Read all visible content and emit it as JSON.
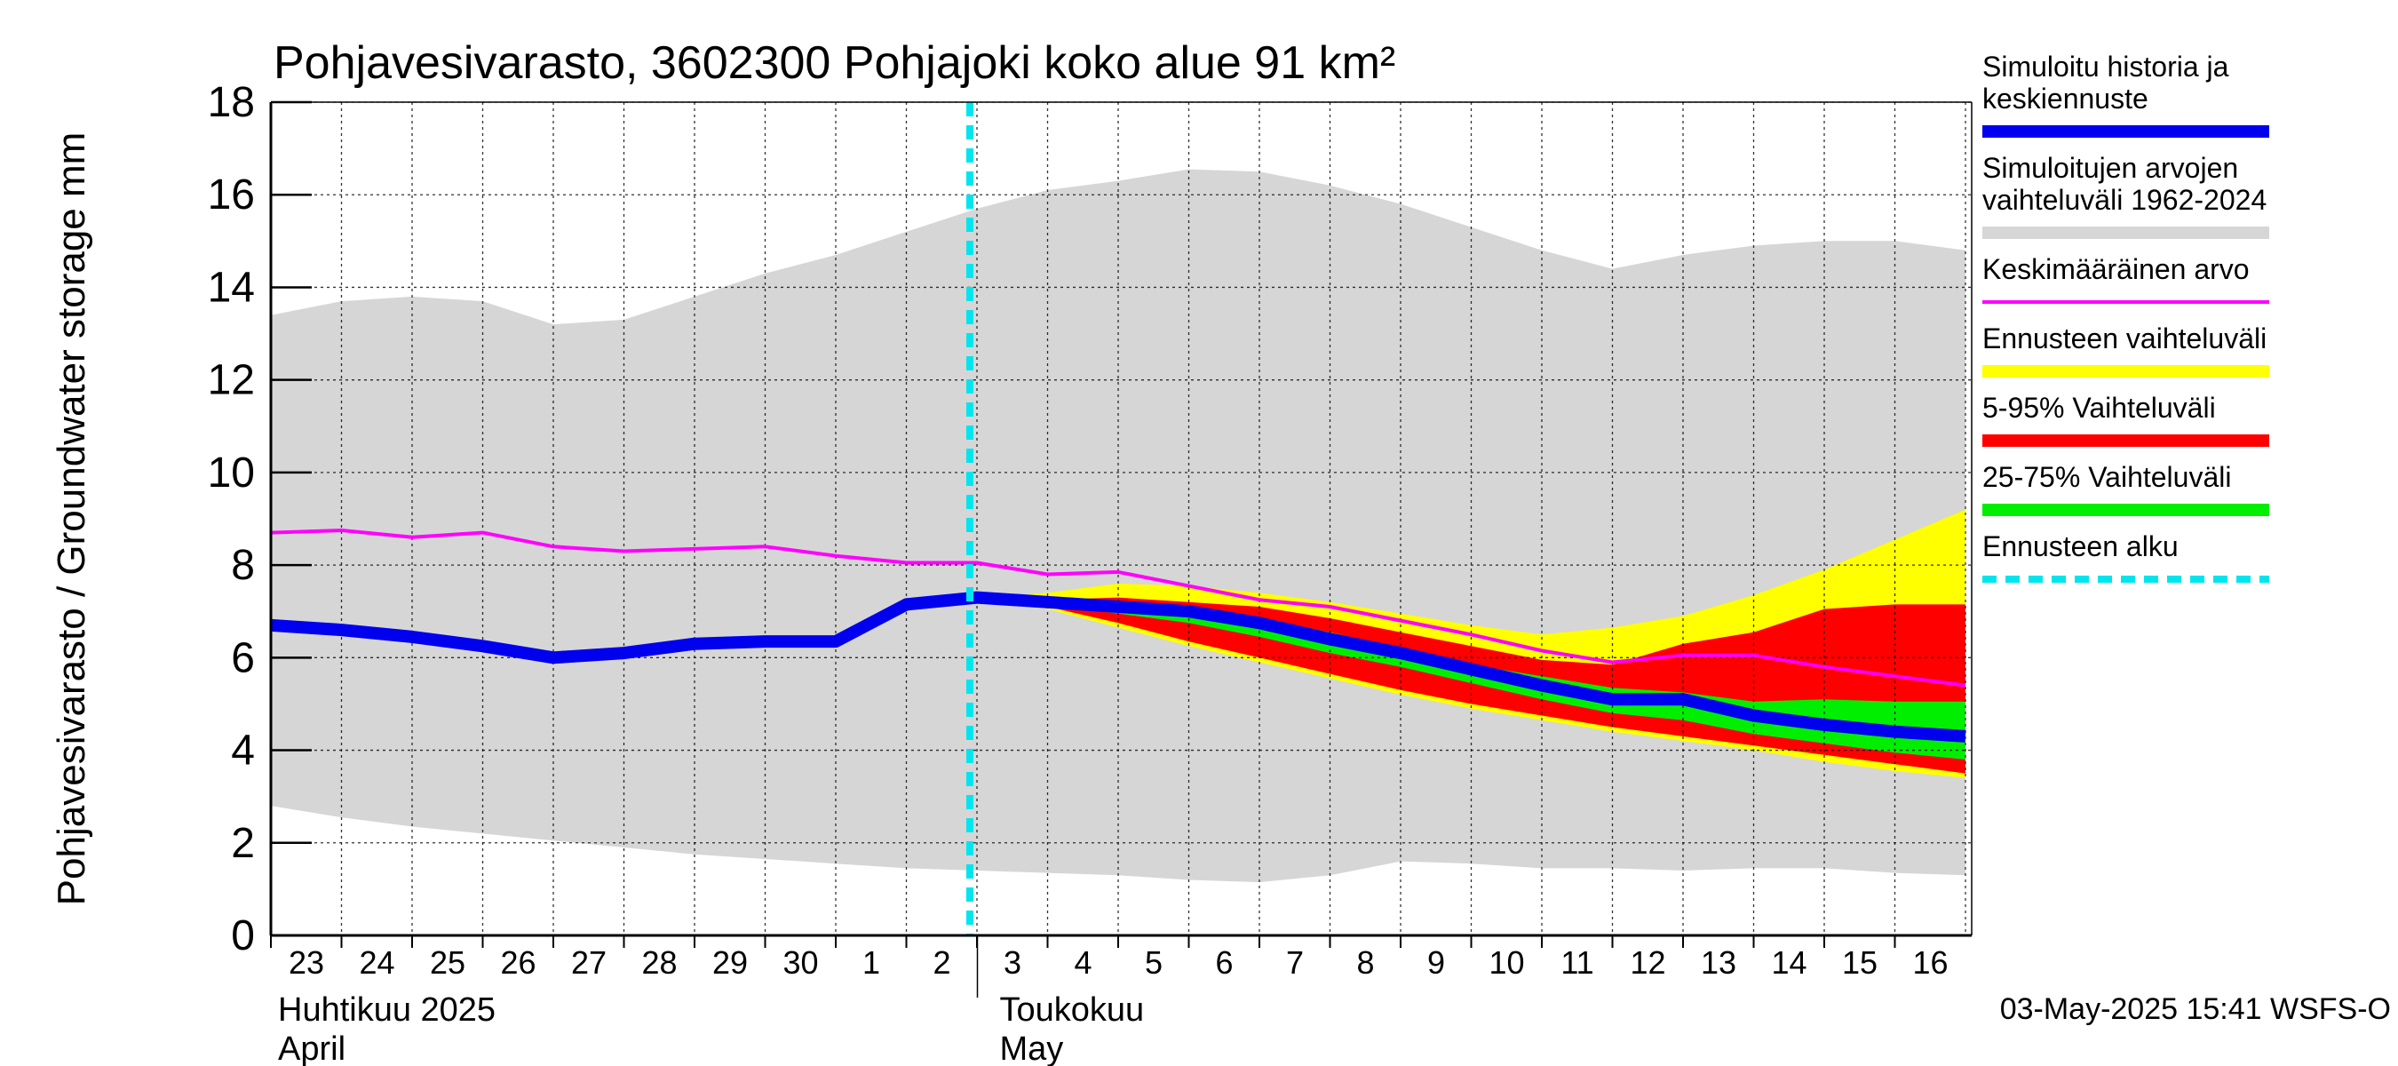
{
  "chart_data": {
    "type": "area",
    "title": "Pohjavesivarasto, 3602300 Pohjajoki koko alue 91 km²",
    "ylabel": "Pohjavesivarasto / Groundwater storage   mm",
    "ylim": [
      0,
      18
    ],
    "yticks": [
      0,
      2,
      4,
      6,
      8,
      10,
      12,
      14,
      16,
      18
    ],
    "x_day_labels": [
      "23",
      "24",
      "25",
      "26",
      "27",
      "28",
      "29",
      "30",
      "1",
      "2",
      "3",
      "4",
      "5",
      "6",
      "7",
      "8",
      "9",
      "10",
      "11",
      "12",
      "13",
      "14",
      "15",
      "16"
    ],
    "x_month_labels": [
      {
        "day_index": 0,
        "fi": "Huhtikuu  2025",
        "en": "April"
      },
      {
        "day_index": 9,
        "fi": "Toukokuu",
        "en": "May"
      }
    ],
    "forecast_start_day_index": 10,
    "footer": "03-May-2025 15:41 WSFS-O",
    "colors": {
      "hist_range": "#d6d6d6",
      "sim": "#0000ee",
      "mean": "#ff00ff",
      "fc_range": "#ffff00",
      "p5_95": "#ff0000",
      "p25_75": "#00ee00",
      "forecast_start": "#00e5ee",
      "grid": "#000000"
    },
    "legend": [
      {
        "key": "sim",
        "lines": [
          "Simuloitu historia ja",
          "keskiennuste"
        ],
        "style": "thick"
      },
      {
        "key": "hist_range",
        "lines": [
          "Simuloitujen arvojen",
          "vaihteluväli 1962-2024"
        ],
        "style": "band"
      },
      {
        "key": "mean",
        "lines": [
          "Keskimääräinen arvo"
        ],
        "style": "thin"
      },
      {
        "key": "fc_range",
        "lines": [
          "Ennusteen vaihteluväli"
        ],
        "style": "band"
      },
      {
        "key": "p5_95",
        "lines": [
          "5-95% Vaihteluväli"
        ],
        "style": "band"
      },
      {
        "key": "p25_75",
        "lines": [
          "25-75% Vaihteluväli"
        ],
        "style": "band"
      },
      {
        "key": "forecast_start",
        "lines": [
          "Ennusteen alku"
        ],
        "style": "dashed"
      }
    ],
    "series": {
      "hist_range": {
        "x": [
          0,
          1,
          2,
          3,
          4,
          5,
          6,
          7,
          8,
          9,
          10,
          11,
          12,
          13,
          14,
          15,
          16,
          17,
          18,
          19,
          20,
          21,
          22,
          23,
          24
        ],
        "upper": [
          13.4,
          13.7,
          13.8,
          13.7,
          13.2,
          13.3,
          13.8,
          14.3,
          14.7,
          15.2,
          15.7,
          16.1,
          16.3,
          16.55,
          16.5,
          16.2,
          15.8,
          15.3,
          14.8,
          14.4,
          14.7,
          14.9,
          15.0,
          15.0,
          14.8
        ],
        "lower": [
          2.8,
          2.55,
          2.35,
          2.2,
          2.05,
          1.9,
          1.75,
          1.65,
          1.55,
          1.45,
          1.4,
          1.35,
          1.3,
          1.2,
          1.15,
          1.3,
          1.6,
          1.55,
          1.45,
          1.45,
          1.4,
          1.45,
          1.45,
          1.35,
          1.3
        ]
      },
      "mean": {
        "x": [
          0,
          1,
          2,
          3,
          4,
          5,
          6,
          7,
          8,
          9,
          10,
          11,
          12,
          13,
          14,
          15,
          16,
          17,
          18,
          19,
          20,
          21,
          22,
          23,
          24
        ],
        "y": [
          8.7,
          8.75,
          8.6,
          8.7,
          8.4,
          8.3,
          8.35,
          8.4,
          8.2,
          8.05,
          8.05,
          7.8,
          7.85,
          7.55,
          7.25,
          7.1,
          6.8,
          6.5,
          6.15,
          5.9,
          6.05,
          6.05,
          5.8,
          5.6,
          5.4
        ]
      },
      "sim": {
        "x": [
          0,
          1,
          2,
          3,
          4,
          5,
          6,
          7,
          8,
          9,
          10,
          11,
          12,
          13,
          14,
          15,
          16,
          17,
          18,
          19,
          20,
          21,
          22,
          23,
          24
        ],
        "y": [
          6.7,
          6.6,
          6.45,
          6.25,
          6.0,
          6.1,
          6.3,
          6.35,
          6.35,
          7.15,
          7.3,
          7.2,
          7.1,
          7.0,
          6.75,
          6.4,
          6.1,
          5.75,
          5.4,
          5.1,
          5.1,
          4.75,
          4.55,
          4.4,
          4.3
        ]
      },
      "fc_range": {
        "x": [
          10,
          11,
          12,
          13,
          14,
          15,
          16,
          17,
          18,
          19,
          20,
          21,
          22,
          23,
          24
        ],
        "upper": [
          7.3,
          7.4,
          7.6,
          7.55,
          7.4,
          7.2,
          6.95,
          6.7,
          6.5,
          6.65,
          6.9,
          7.35,
          7.9,
          8.55,
          9.2
        ],
        "lower": [
          7.3,
          7.05,
          6.65,
          6.25,
          5.9,
          5.55,
          5.2,
          4.9,
          4.65,
          4.4,
          4.2,
          4.0,
          3.75,
          3.55,
          3.4
        ]
      },
      "p5_95": {
        "x": [
          10,
          11,
          12,
          13,
          14,
          15,
          16,
          17,
          18,
          19,
          20,
          21,
          22,
          23,
          24
        ],
        "upper": [
          7.3,
          7.25,
          7.3,
          7.2,
          7.1,
          6.85,
          6.55,
          6.25,
          5.95,
          5.85,
          6.3,
          6.55,
          7.05,
          7.15,
          7.15
        ],
        "lower": [
          7.3,
          7.1,
          6.75,
          6.35,
          6.0,
          5.65,
          5.3,
          5.0,
          4.75,
          4.5,
          4.3,
          4.1,
          3.9,
          3.7,
          3.5
        ]
      },
      "p25_75": {
        "x": [
          10,
          11,
          12,
          13,
          14,
          15,
          16,
          17,
          18,
          19,
          20,
          21,
          22,
          23,
          24
        ],
        "upper": [
          7.3,
          7.2,
          7.15,
          7.05,
          6.85,
          6.55,
          6.2,
          5.85,
          5.6,
          5.35,
          5.25,
          5.05,
          5.1,
          5.05,
          5.05
        ],
        "lower": [
          7.3,
          7.15,
          6.95,
          6.75,
          6.45,
          6.1,
          5.8,
          5.45,
          5.1,
          4.8,
          4.65,
          4.35,
          4.15,
          3.95,
          3.8
        ]
      }
    }
  }
}
